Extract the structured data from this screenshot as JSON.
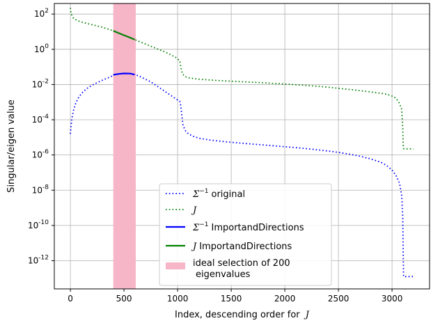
{
  "chart_data": {
    "type": "line",
    "xlabel": "Index, descending order for",
    "xlabel_math": "J",
    "ylabel": "Singular/eigen value",
    "xlim": [
      -150,
      3350
    ],
    "ylim_log10": [
      -13.6,
      2.6
    ],
    "y_scale": "log",
    "grid": true,
    "legend_position": "bottom-center",
    "x_ticks": [
      0,
      500,
      1000,
      1500,
      2000,
      2500,
      3000
    ],
    "x_tick_labels": [
      "0",
      "500",
      "1000",
      "1500",
      "2000",
      "2500",
      "3000"
    ],
    "y_ticks_log10": [
      2,
      0,
      -2,
      -4,
      -6,
      -8,
      -10,
      -12
    ],
    "y_tick_labels": [
      "10",
      "10",
      "10",
      "10",
      "10",
      "10",
      "10",
      "10"
    ],
    "y_tick_exponents": [
      "2",
      "0",
      "-2",
      "-4",
      "-6",
      "-8",
      "-10",
      "-12"
    ],
    "highlight": {
      "x_range": [
        400,
        610
      ],
      "color": "#f7b6c8",
      "label_line1": "ideal selection of 200",
      "label_line2": "eigenvalues"
    },
    "series": [
      {
        "name_math": "Σ",
        "name_sup": "−1",
        "name": "original",
        "color": "#0000ff",
        "style": "dotted",
        "points": [
          [
            0,
            -4.8
          ],
          [
            5,
            -4.4
          ],
          [
            15,
            -3.9
          ],
          [
            30,
            -3.45
          ],
          [
            50,
            -3.05
          ],
          [
            80,
            -2.7
          ],
          [
            120,
            -2.4
          ],
          [
            170,
            -2.15
          ],
          [
            230,
            -1.95
          ],
          [
            300,
            -1.75
          ],
          [
            380,
            -1.55
          ],
          [
            400,
            -1.45
          ],
          [
            450,
            -1.4
          ],
          [
            500,
            -1.37
          ],
          [
            560,
            -1.38
          ],
          [
            610,
            -1.45
          ],
          [
            650,
            -1.55
          ],
          [
            700,
            -1.7
          ],
          [
            750,
            -1.85
          ],
          [
            800,
            -2.05
          ],
          [
            860,
            -2.3
          ],
          [
            920,
            -2.55
          ],
          [
            980,
            -2.8
          ],
          [
            1020,
            -2.95
          ],
          [
            1030,
            -3.2
          ],
          [
            1040,
            -3.8
          ],
          [
            1050,
            -4.3
          ],
          [
            1070,
            -4.6
          ],
          [
            1100,
            -4.8
          ],
          [
            1150,
            -4.95
          ],
          [
            1200,
            -5.05
          ],
          [
            1300,
            -5.15
          ],
          [
            1400,
            -5.22
          ],
          [
            1500,
            -5.28
          ],
          [
            1600,
            -5.33
          ],
          [
            1700,
            -5.38
          ],
          [
            1800,
            -5.43
          ],
          [
            1900,
            -5.48
          ],
          [
            2000,
            -5.53
          ],
          [
            2100,
            -5.58
          ],
          [
            2200,
            -5.64
          ],
          [
            2300,
            -5.7
          ],
          [
            2400,
            -5.77
          ],
          [
            2500,
            -5.85
          ],
          [
            2600,
            -5.95
          ],
          [
            2700,
            -6.07
          ],
          [
            2800,
            -6.22
          ],
          [
            2900,
            -6.42
          ],
          [
            2950,
            -6.6
          ],
          [
            3000,
            -6.85
          ],
          [
            3040,
            -7.2
          ],
          [
            3070,
            -7.6
          ],
          [
            3090,
            -8.3
          ],
          [
            3100,
            -9.5
          ],
          [
            3105,
            -12.0
          ],
          [
            3108,
            -12.9
          ],
          [
            3200,
            -12.9
          ]
        ]
      },
      {
        "name_math": "J",
        "name_sup": "",
        "name": "",
        "color": "#008000",
        "style": "dotted",
        "points": [
          [
            0,
            2.35
          ],
          [
            5,
            2.1
          ],
          [
            15,
            1.9
          ],
          [
            30,
            1.75
          ],
          [
            60,
            1.65
          ],
          [
            100,
            1.55
          ],
          [
            200,
            1.4
          ],
          [
            300,
            1.25
          ],
          [
            400,
            1.05
          ],
          [
            500,
            0.8
          ],
          [
            600,
            0.55
          ],
          [
            700,
            0.3
          ],
          [
            800,
            0.05
          ],
          [
            900,
            -0.2
          ],
          [
            980,
            -0.45
          ],
          [
            1020,
            -0.65
          ],
          [
            1030,
            -1.0
          ],
          [
            1045,
            -1.4
          ],
          [
            1070,
            -1.55
          ],
          [
            1100,
            -1.62
          ],
          [
            1200,
            -1.7
          ],
          [
            1400,
            -1.78
          ],
          [
            1600,
            -1.84
          ],
          [
            1800,
            -1.9
          ],
          [
            2000,
            -1.97
          ],
          [
            2200,
            -2.05
          ],
          [
            2400,
            -2.15
          ],
          [
            2600,
            -2.28
          ],
          [
            2800,
            -2.42
          ],
          [
            2950,
            -2.55
          ],
          [
            3020,
            -2.7
          ],
          [
            3060,
            -2.95
          ],
          [
            3090,
            -3.4
          ],
          [
            3100,
            -4.5
          ],
          [
            3105,
            -5.6
          ],
          [
            3110,
            -5.65
          ],
          [
            3200,
            -5.65
          ]
        ]
      },
      {
        "name_math": "Σ",
        "name_sup": "−1",
        "name": "ImportandDirections",
        "color": "#0000ff",
        "style": "solid",
        "points": [
          [
            400,
            -1.45
          ],
          [
            450,
            -1.4
          ],
          [
            500,
            -1.37
          ],
          [
            560,
            -1.38
          ],
          [
            600,
            -1.44
          ]
        ]
      },
      {
        "name_math": "J",
        "name_sup": "",
        "name": "ImportandDirections",
        "color": "#008000",
        "style": "solid",
        "points": [
          [
            400,
            1.05
          ],
          [
            450,
            0.92
          ],
          [
            500,
            0.8
          ],
          [
            550,
            0.68
          ],
          [
            600,
            0.55
          ]
        ]
      }
    ]
  }
}
